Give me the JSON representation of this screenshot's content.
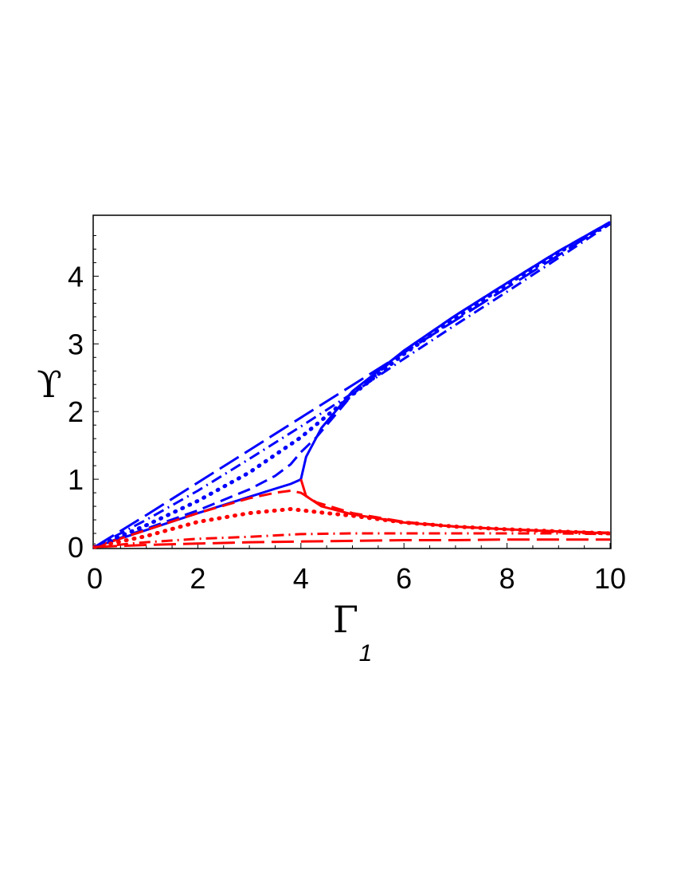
{
  "chart_data": {
    "type": "line",
    "xlabel": "Γ",
    "xlabel_subscript": "1",
    "ylabel": "ϒ",
    "xlim": [
      0,
      10
    ],
    "ylim": [
      0,
      4.9
    ],
    "xticks": [
      "0",
      "2",
      "4",
      "6",
      "8",
      "10"
    ],
    "yticks": [
      "0",
      "1",
      "2",
      "3",
      "4"
    ],
    "grid": false,
    "colors": {
      "upper_branch": "#0000ff",
      "lower_branch": "#ff0000"
    },
    "series": [
      {
        "branch": "upper",
        "style": "solid",
        "color": "#0000ff",
        "x": [
          0,
          1,
          2,
          3,
          3.5,
          3.8,
          3.95,
          4.0,
          4.1,
          4.4,
          5,
          6,
          7,
          8,
          9,
          10
        ],
        "y": [
          0,
          0.25,
          0.5,
          0.74,
          0.86,
          0.93,
          0.98,
          1.0,
          1.33,
          1.76,
          2.3,
          2.9,
          3.42,
          3.9,
          4.37,
          4.8
        ]
      },
      {
        "branch": "lower",
        "style": "solid",
        "color": "#ff0000",
        "x": [
          4.0,
          4.1,
          4.4,
          5,
          6,
          7,
          8,
          9,
          10
        ],
        "y": [
          1.0,
          0.75,
          0.6,
          0.48,
          0.36,
          0.3,
          0.26,
          0.23,
          0.2
        ]
      },
      {
        "branch": "upper",
        "style": "dashed",
        "color": "#0000ff",
        "x": [
          0,
          1,
          2,
          3,
          3.5,
          3.8,
          4.0,
          4.3,
          5,
          6,
          7,
          8,
          9,
          10
        ],
        "y": [
          0,
          0.27,
          0.54,
          0.85,
          1.05,
          1.22,
          1.4,
          1.62,
          2.25,
          2.9,
          3.42,
          3.9,
          4.37,
          4.8
        ]
      },
      {
        "branch": "lower",
        "style": "dashed",
        "color": "#ff0000",
        "x": [
          0,
          1,
          2,
          3,
          3.5,
          3.8,
          4.0,
          4.3,
          5,
          6,
          7,
          8,
          9,
          10
        ],
        "y": [
          0,
          0.25,
          0.5,
          0.72,
          0.8,
          0.83,
          0.8,
          0.66,
          0.5,
          0.37,
          0.3,
          0.26,
          0.23,
          0.21
        ]
      },
      {
        "branch": "upper",
        "style": "dotted",
        "color": "#0000ff",
        "x": [
          0,
          1,
          2,
          3,
          4,
          5,
          6,
          7,
          8,
          9,
          10
        ],
        "y": [
          0,
          0.32,
          0.68,
          1.1,
          1.62,
          2.25,
          2.85,
          3.38,
          3.88,
          4.35,
          4.78
        ]
      },
      {
        "branch": "lower",
        "style": "dotted",
        "color": "#ff0000",
        "x": [
          0,
          1,
          2,
          3,
          3.8,
          4.5,
          5,
          6,
          7,
          8,
          9,
          10
        ],
        "y": [
          0,
          0.16,
          0.37,
          0.5,
          0.56,
          0.5,
          0.46,
          0.36,
          0.3,
          0.26,
          0.23,
          0.2
        ]
      },
      {
        "branch": "upper",
        "style": "dashdot",
        "color": "#0000ff",
        "x": [
          0,
          1,
          2,
          3,
          4,
          5,
          6,
          7,
          8,
          9,
          10
        ],
        "y": [
          0,
          0.4,
          0.83,
          1.3,
          1.78,
          2.27,
          2.78,
          3.28,
          3.77,
          4.27,
          4.77
        ]
      },
      {
        "branch": "lower",
        "style": "dashdot",
        "color": "#ff0000",
        "x": [
          0,
          1,
          2,
          3,
          4,
          5,
          6,
          7,
          8,
          9,
          10
        ],
        "y": [
          0,
          0.07,
          0.12,
          0.15,
          0.19,
          0.2,
          0.2,
          0.2,
          0.2,
          0.2,
          0.19
        ]
      },
      {
        "branch": "upper",
        "style": "longdash",
        "color": "#0000ff",
        "x": [
          0,
          1,
          2,
          3,
          4,
          5,
          6,
          7,
          8,
          9,
          10
        ],
        "y": [
          0,
          0.47,
          0.95,
          1.43,
          1.91,
          2.39,
          2.87,
          3.35,
          3.83,
          4.31,
          4.8
        ]
      },
      {
        "branch": "lower",
        "style": "longdash",
        "color": "#ff0000",
        "x": [
          0,
          1,
          2,
          3,
          4,
          5,
          6,
          7,
          8,
          9,
          10
        ],
        "y": [
          0,
          0.03,
          0.05,
          0.07,
          0.08,
          0.09,
          0.1,
          0.1,
          0.11,
          0.11,
          0.11
        ]
      }
    ]
  }
}
